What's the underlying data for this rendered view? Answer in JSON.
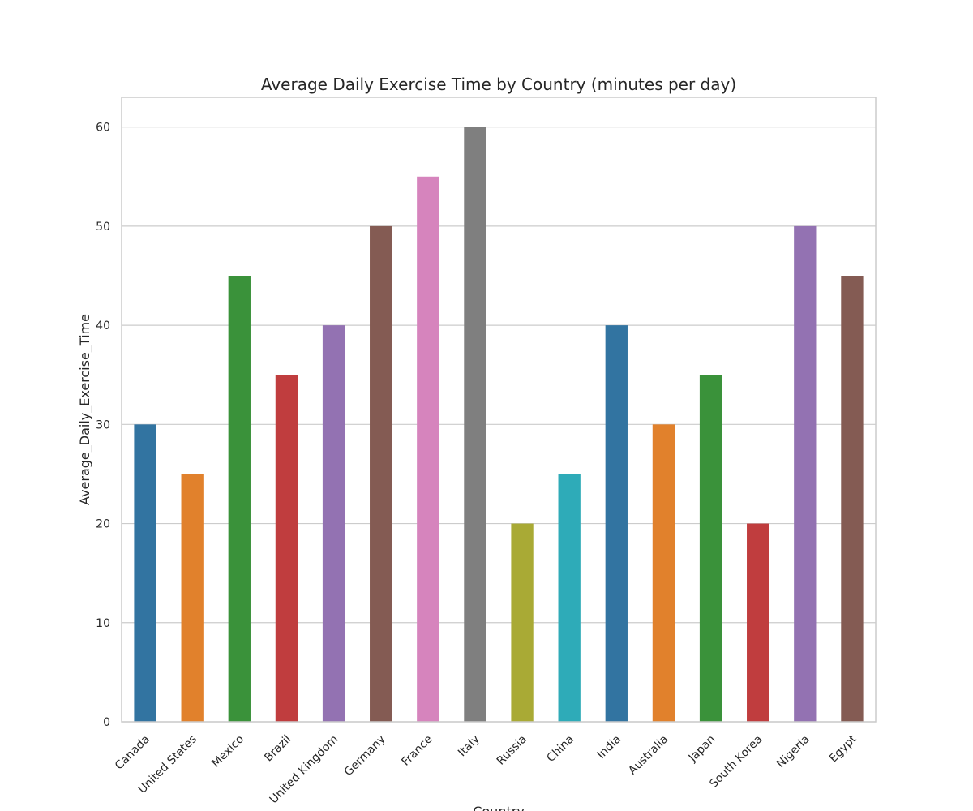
{
  "chart_data": {
    "type": "bar",
    "title": "Average Daily Exercise Time by Country (minutes per day)",
    "xlabel": "Country",
    "ylabel": "Average_Daily_Exercise_Time",
    "ylim": [
      0,
      63
    ],
    "yticks": [
      0,
      10,
      20,
      30,
      40,
      50,
      60
    ],
    "grid": "horizontal",
    "categories": [
      "Canada",
      "United States",
      "Mexico",
      "Brazil",
      "United Kingdom",
      "Germany",
      "France",
      "Italy",
      "Russia",
      "China",
      "India",
      "Australia",
      "Japan",
      "South Korea",
      "Nigeria",
      "Egypt"
    ],
    "values": [
      30,
      25,
      45,
      35,
      40,
      50,
      55,
      60,
      20,
      25,
      40,
      30,
      35,
      20,
      50,
      45
    ],
    "colors": [
      "#3274a1",
      "#e1812c",
      "#3a923a",
      "#c03d3e",
      "#9372b2",
      "#845b53",
      "#d684bd",
      "#7f7f7f",
      "#a9aa35",
      "#2eabb8",
      "#3274a1",
      "#e1812c",
      "#3a923a",
      "#c03d3e",
      "#9372b2",
      "#845b53"
    ],
    "grid_color": "#cccccc",
    "frame_color": "#cccccc"
  }
}
